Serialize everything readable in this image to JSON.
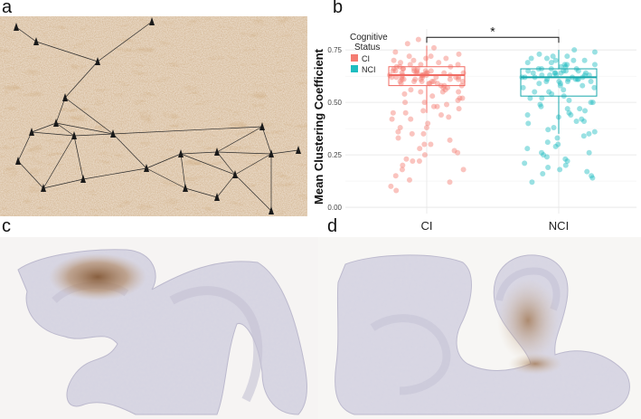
{
  "panels": {
    "a": {
      "letter": "a"
    },
    "b": {
      "letter": "b"
    },
    "c": {
      "letter": "c"
    },
    "d": {
      "letter": "d"
    }
  },
  "colors": {
    "ci": "#f47c72",
    "nci": "#1ebdc0",
    "ci_box": "#f06b63",
    "nci_box": "#18a8ac",
    "grid": "#e6e6e6"
  },
  "chart_data": {
    "type": "box-with-jitter",
    "title": "",
    "xlabel": "",
    "ylabel": "Mean Clustering Coefficient",
    "categories": [
      "CI",
      "NCI"
    ],
    "ylim": [
      -0.03,
      0.85
    ],
    "yticks": [
      0.0,
      0.25,
      0.5,
      0.75
    ],
    "ytick_labels": [
      "0.00",
      "0.25",
      "0.50",
      "0.75"
    ],
    "grid": true,
    "legend": {
      "title_line1": "Cognitive",
      "title_line2": "Status",
      "placement": "top-left",
      "entries": [
        "CI",
        "NCI"
      ]
    },
    "significance": {
      "label": "*",
      "between": [
        "CI",
        "NCI"
      ],
      "level": 0.81
    },
    "box": [
      {
        "category": "CI",
        "q1": 0.58,
        "median": 0.63,
        "q3": 0.67,
        "whisker_low": 0.45,
        "whisker_high": 0.77
      },
      {
        "category": "NCI",
        "q1": 0.53,
        "median": 0.62,
        "q3": 0.66,
        "whisker_low": 0.35,
        "whisker_high": 0.75
      }
    ],
    "series": [
      {
        "category": "CI",
        "values": [
          0.68,
          0.66,
          0.65,
          0.64,
          0.63,
          0.62,
          0.61,
          0.6,
          0.59,
          0.58,
          0.67,
          0.66,
          0.64,
          0.63,
          0.62,
          0.61,
          0.6,
          0.59,
          0.7,
          0.71,
          0.72,
          0.69,
          0.68,
          0.67,
          0.65,
          0.64,
          0.63,
          0.62,
          0.61,
          0.6,
          0.57,
          0.56,
          0.55,
          0.54,
          0.53,
          0.52,
          0.51,
          0.5,
          0.49,
          0.48,
          0.47,
          0.46,
          0.45,
          0.44,
          0.43,
          0.42,
          0.4,
          0.38,
          0.36,
          0.35,
          0.33,
          0.32,
          0.3,
          0.28,
          0.27,
          0.25,
          0.23,
          0.22,
          0.2,
          0.18,
          0.15,
          0.12,
          0.1,
          0.08,
          0.74,
          0.76,
          0.78,
          0.8,
          0.66,
          0.65,
          0.64,
          0.63,
          0.62,
          0.61,
          0.6,
          0.59,
          0.58,
          0.66,
          0.65,
          0.64,
          0.63,
          0.62,
          0.68,
          0.67,
          0.66,
          0.65,
          0.64,
          0.63,
          0.62,
          0.61,
          0.6,
          0.59,
          0.58,
          0.57,
          0.56,
          0.55,
          0.69,
          0.7,
          0.71,
          0.72,
          0.73,
          0.65,
          0.64,
          0.63,
          0.62,
          0.61,
          0.6,
          0.55,
          0.52,
          0.5,
          0.48,
          0.45,
          0.42,
          0.38,
          0.35,
          0.3,
          0.26,
          0.22,
          0.18,
          0.13
        ]
      },
      {
        "category": "NCI",
        "values": [
          0.66,
          0.65,
          0.64,
          0.63,
          0.62,
          0.61,
          0.6,
          0.59,
          0.58,
          0.57,
          0.67,
          0.68,
          0.69,
          0.7,
          0.71,
          0.72,
          0.73,
          0.74,
          0.75,
          0.64,
          0.63,
          0.62,
          0.61,
          0.6,
          0.66,
          0.65,
          0.64,
          0.63,
          0.62,
          0.61,
          0.56,
          0.55,
          0.54,
          0.53,
          0.52,
          0.51,
          0.5,
          0.49,
          0.48,
          0.47,
          0.46,
          0.45,
          0.44,
          0.43,
          0.42,
          0.41,
          0.4,
          0.38,
          0.36,
          0.35,
          0.33,
          0.31,
          0.3,
          0.28,
          0.26,
          0.25,
          0.24,
          0.22,
          0.2,
          0.18,
          0.16,
          0.15,
          0.14,
          0.12,
          0.7,
          0.69,
          0.68,
          0.67,
          0.66,
          0.65,
          0.64,
          0.63,
          0.62,
          0.61,
          0.6,
          0.59,
          0.58,
          0.57,
          0.66,
          0.65,
          0.64,
          0.63,
          0.62,
          0.61,
          0.6,
          0.72,
          0.71,
          0.7,
          0.68,
          0.55,
          0.52,
          0.5,
          0.47,
          0.44,
          0.41,
          0.37,
          0.34,
          0.29,
          0.26,
          0.23,
          0.21,
          0.19,
          0.17
        ]
      }
    ]
  }
}
